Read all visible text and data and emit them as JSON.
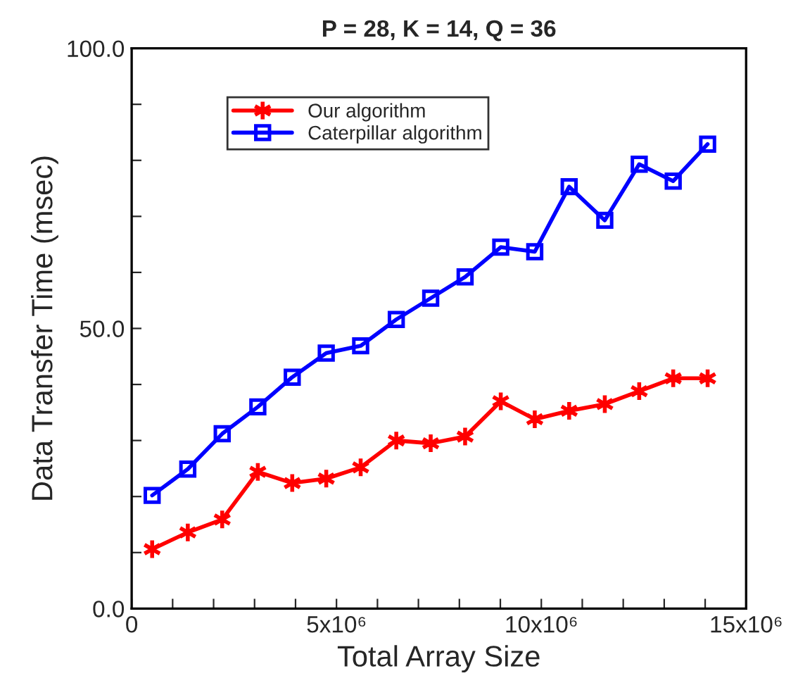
{
  "chart_data": {
    "type": "line",
    "title": "P = 28, K = 14, Q = 36",
    "xlabel": "Total Array Size",
    "ylabel": "Data Transfer Time (msec)",
    "x": [
      500000,
      1370000,
      2210000,
      3080000,
      3920000,
      4750000,
      5590000,
      6460000,
      7300000,
      8140000,
      9010000,
      9840000,
      10680000,
      11550000,
      12390000,
      13220000,
      14060000
    ],
    "series": [
      {
        "name": "Our algorithm",
        "color": "#ff0000",
        "marker": "cross",
        "values": [
          10.6,
          13.6,
          15.9,
          24.4,
          22.4,
          23.2,
          25.2,
          30.0,
          29.5,
          30.7,
          37.0,
          33.8,
          35.3,
          36.5,
          38.8,
          41.1,
          41.1
        ]
      },
      {
        "name": "Caterpillar algorithm",
        "color": "#0000ff",
        "marker": "square",
        "values": [
          20.2,
          24.9,
          31.2,
          36.0,
          41.3,
          45.6,
          46.9,
          51.6,
          55.4,
          59.2,
          64.5,
          63.7,
          75.3,
          69.3,
          79.3,
          76.3,
          82.9
        ]
      }
    ],
    "xlim": [
      0,
      15000000
    ],
    "ylim": [
      0,
      100
    ],
    "xticks": [
      0,
      {
        "value": 1000000,
        "label": null
      },
      {
        "value": 2000000,
        "label": null
      },
      {
        "value": 3000000,
        "label": null
      },
      {
        "value": 4000000,
        "label": null
      },
      {
        "value": 5000000,
        "label": "5x10⁶"
      },
      {
        "value": 6000000,
        "label": null
      },
      {
        "value": 7000000,
        "label": null
      },
      {
        "value": 8000000,
        "label": null
      },
      {
        "value": 9000000,
        "label": null
      },
      {
        "value": 10000000,
        "label": "10x10⁶"
      },
      {
        "value": 11000000,
        "label": null
      },
      {
        "value": 12000000,
        "label": null
      },
      {
        "value": 13000000,
        "label": null
      },
      {
        "value": 14000000,
        "label": null
      },
      {
        "value": 15000000,
        "label": "15x10⁶"
      }
    ],
    "yticks": [
      {
        "value": 0,
        "label": "0.0"
      },
      {
        "value": 10,
        "label": null
      },
      {
        "value": 20,
        "label": null
      },
      {
        "value": 30,
        "label": null
      },
      {
        "value": 40,
        "label": null
      },
      {
        "value": 50,
        "label": "50.0"
      },
      {
        "value": 60,
        "label": null
      },
      {
        "value": 70,
        "label": null
      },
      {
        "value": 80,
        "label": null
      },
      {
        "value": 90,
        "label": null
      },
      {
        "value": 100,
        "label": "100.0"
      }
    ],
    "grid": false,
    "legend": "top left",
    "line_style": "solid"
  }
}
